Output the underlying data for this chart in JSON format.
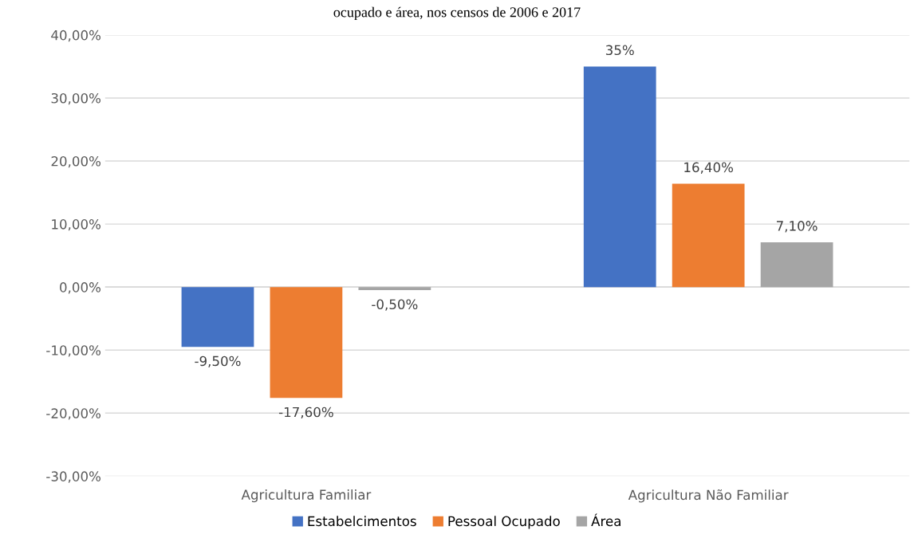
{
  "chart_data": {
    "type": "bar",
    "title": "ocupado e área, nos censos de 2006 e 2017",
    "categories": [
      "Agricultura Familiar",
      "Agricultura Não Familiar"
    ],
    "series": [
      {
        "name": "Estabelcimentos",
        "color": "#4472c4",
        "values": [
          -9.5,
          35
        ],
        "value_labels": [
          "-9,50%",
          "35%"
        ]
      },
      {
        "name": "Pessoal Ocupado",
        "color": "#ed7d31",
        "values": [
          -17.6,
          16.4
        ],
        "value_labels": [
          "-17,60%",
          "16,40%"
        ]
      },
      {
        "name": "Área",
        "color": "#a5a5a5",
        "values": [
          -0.5,
          7.1
        ],
        "value_labels": [
          "-0,50%",
          "7,10%"
        ]
      }
    ],
    "ylim": [
      -30,
      40
    ],
    "yticks": [
      {
        "value": -30,
        "label": "-30,00%"
      },
      {
        "value": -20,
        "label": "-20,00%"
      },
      {
        "value": -10,
        "label": "-10,00%"
      },
      {
        "value": 0,
        "label": "0,00%"
      },
      {
        "value": 10,
        "label": "10,00%"
      },
      {
        "value": 20,
        "label": "20,00%"
      },
      {
        "value": 30,
        "label": "30,00%"
      },
      {
        "value": 40,
        "label": "40,00%"
      }
    ],
    "grid": "y",
    "legend": "bottom"
  }
}
